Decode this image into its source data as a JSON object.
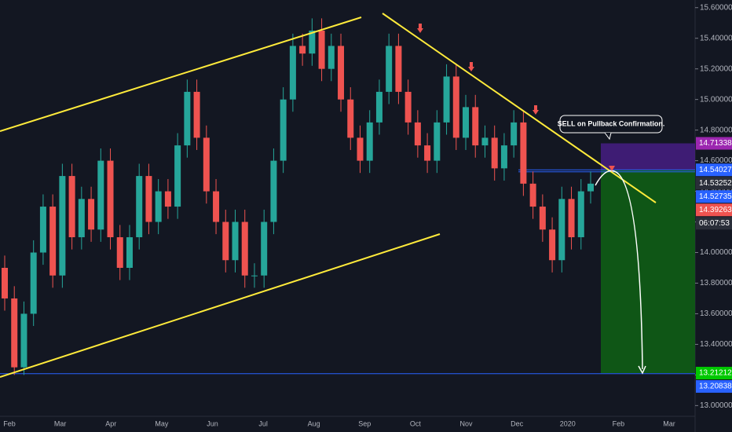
{
  "chart_data": {
    "type": "candlestick",
    "open": [
      13.9,
      13.7,
      13.25,
      13.6,
      14.0,
      14.3,
      13.85,
      14.5,
      14.1,
      14.35,
      14.15,
      14.6,
      14.1,
      13.9,
      14.1,
      14.5,
      14.2,
      14.4,
      14.3,
      14.7,
      15.05,
      14.75,
      14.4,
      14.2,
      13.95,
      14.2,
      13.85,
      13.85,
      14.2,
      14.6,
      15.0,
      15.35,
      15.3,
      15.45,
      15.2,
      15.35,
      15.0,
      14.75,
      14.6,
      14.85,
      15.05,
      15.35,
      15.05,
      14.85,
      14.7,
      14.6,
      14.85,
      15.15,
      14.75,
      14.95,
      14.7,
      14.75,
      14.55,
      14.7,
      14.85,
      14.45,
      14.3,
      14.15,
      13.95,
      14.35,
      14.1,
      14.4
    ],
    "high": [
      13.98,
      13.78,
      13.68,
      14.08,
      14.38,
      14.38,
      14.58,
      14.58,
      14.43,
      14.43,
      14.68,
      14.68,
      14.18,
      14.18,
      14.58,
      14.58,
      14.48,
      14.48,
      14.78,
      15.13,
      15.13,
      14.83,
      14.48,
      14.28,
      14.28,
      14.28,
      13.93,
      14.28,
      14.68,
      15.08,
      15.43,
      15.43,
      15.53,
      15.53,
      15.43,
      15.43,
      15.08,
      14.83,
      14.93,
      15.13,
      15.43,
      15.43,
      15.13,
      14.93,
      14.78,
      14.93,
      15.23,
      15.23,
      15.03,
      15.03,
      14.83,
      14.83,
      14.78,
      14.93,
      14.93,
      14.53,
      14.38,
      14.23,
      14.43,
      14.43,
      14.48,
      14.53
    ],
    "low": [
      13.62,
      13.2,
      13.2,
      13.52,
      13.92,
      13.77,
      13.77,
      14.02,
      14.02,
      14.07,
      14.07,
      14.02,
      13.82,
      13.82,
      14.02,
      14.12,
      14.12,
      14.22,
      14.22,
      14.62,
      14.67,
      14.32,
      14.12,
      13.87,
      13.87,
      13.77,
      13.77,
      13.77,
      14.12,
      14.52,
      14.92,
      15.22,
      15.22,
      15.12,
      15.12,
      14.92,
      14.67,
      14.52,
      14.52,
      14.77,
      14.97,
      14.97,
      14.77,
      14.62,
      14.52,
      14.52,
      14.77,
      14.67,
      14.67,
      14.62,
      14.62,
      14.47,
      14.47,
      14.62,
      14.37,
      14.22,
      14.07,
      13.87,
      13.87,
      14.02,
      14.02,
      14.32
    ],
    "close": [
      13.7,
      13.25,
      13.6,
      14.0,
      14.3,
      13.85,
      14.5,
      14.1,
      14.35,
      14.15,
      14.6,
      14.1,
      13.9,
      14.1,
      14.5,
      14.2,
      14.4,
      14.3,
      14.7,
      15.05,
      14.75,
      14.4,
      14.2,
      13.95,
      14.2,
      13.85,
      13.85,
      14.2,
      14.6,
      15.0,
      15.35,
      15.3,
      15.45,
      15.2,
      15.35,
      15.0,
      14.75,
      14.6,
      14.85,
      15.05,
      15.35,
      15.05,
      14.85,
      14.7,
      14.6,
      14.85,
      15.15,
      14.75,
      14.95,
      14.7,
      14.75,
      14.55,
      14.7,
      14.85,
      14.45,
      14.3,
      14.15,
      13.95,
      14.35,
      14.1,
      14.4,
      14.45
    ],
    "up_color": "#26a69a",
    "down_color": "#ef5350",
    "xtick_labels": [
      "Feb",
      "Mar",
      "Apr",
      "May",
      "Jun",
      "Jul",
      "Aug",
      "Sep",
      "Oct",
      "Nov",
      "Dec",
      "2020",
      "Feb",
      "Mar"
    ],
    "ylim": [
      12.93,
      15.65
    ],
    "yticks": [
      {
        "value": 13.0,
        "label": "13.00000"
      },
      {
        "value": 13.2,
        "label": "13.20000"
      },
      {
        "value": 13.4,
        "label": "13.40000"
      },
      {
        "value": 13.6,
        "label": "13.60000"
      },
      {
        "value": 13.8,
        "label": "13.80000"
      },
      {
        "value": 14.0,
        "label": "14.00000"
      },
      {
        "value": 14.2,
        "label": "14.20000"
      },
      {
        "value": 14.4,
        "label": "14.40000"
      },
      {
        "value": 14.6,
        "label": "14.60000"
      },
      {
        "value": 14.8,
        "label": "14.80000"
      },
      {
        "value": 15.0,
        "label": "15.00000"
      },
      {
        "value": 15.2,
        "label": "15.20000"
      },
      {
        "value": 15.4,
        "label": "15.40000"
      },
      {
        "value": 15.6,
        "label": "15.60000"
      }
    ],
    "price_labels": [
      {
        "value": 14.71338,
        "color": "#9c27b0"
      },
      {
        "value": 14.54027,
        "color": "#2962ff"
      },
      {
        "value": 14.53252,
        "color": "#2a2e39"
      },
      {
        "value": 14.52735,
        "color": "#2962ff"
      },
      {
        "value": 14.39263,
        "color": "#ef5350"
      },
      {
        "value": 13.21212,
        "color": "#00c800"
      },
      {
        "value": 13.20838,
        "color": "#2962ff"
      }
    ],
    "timer": "06:07:53",
    "annotation": "SELL on Pullback Confirmation."
  }
}
